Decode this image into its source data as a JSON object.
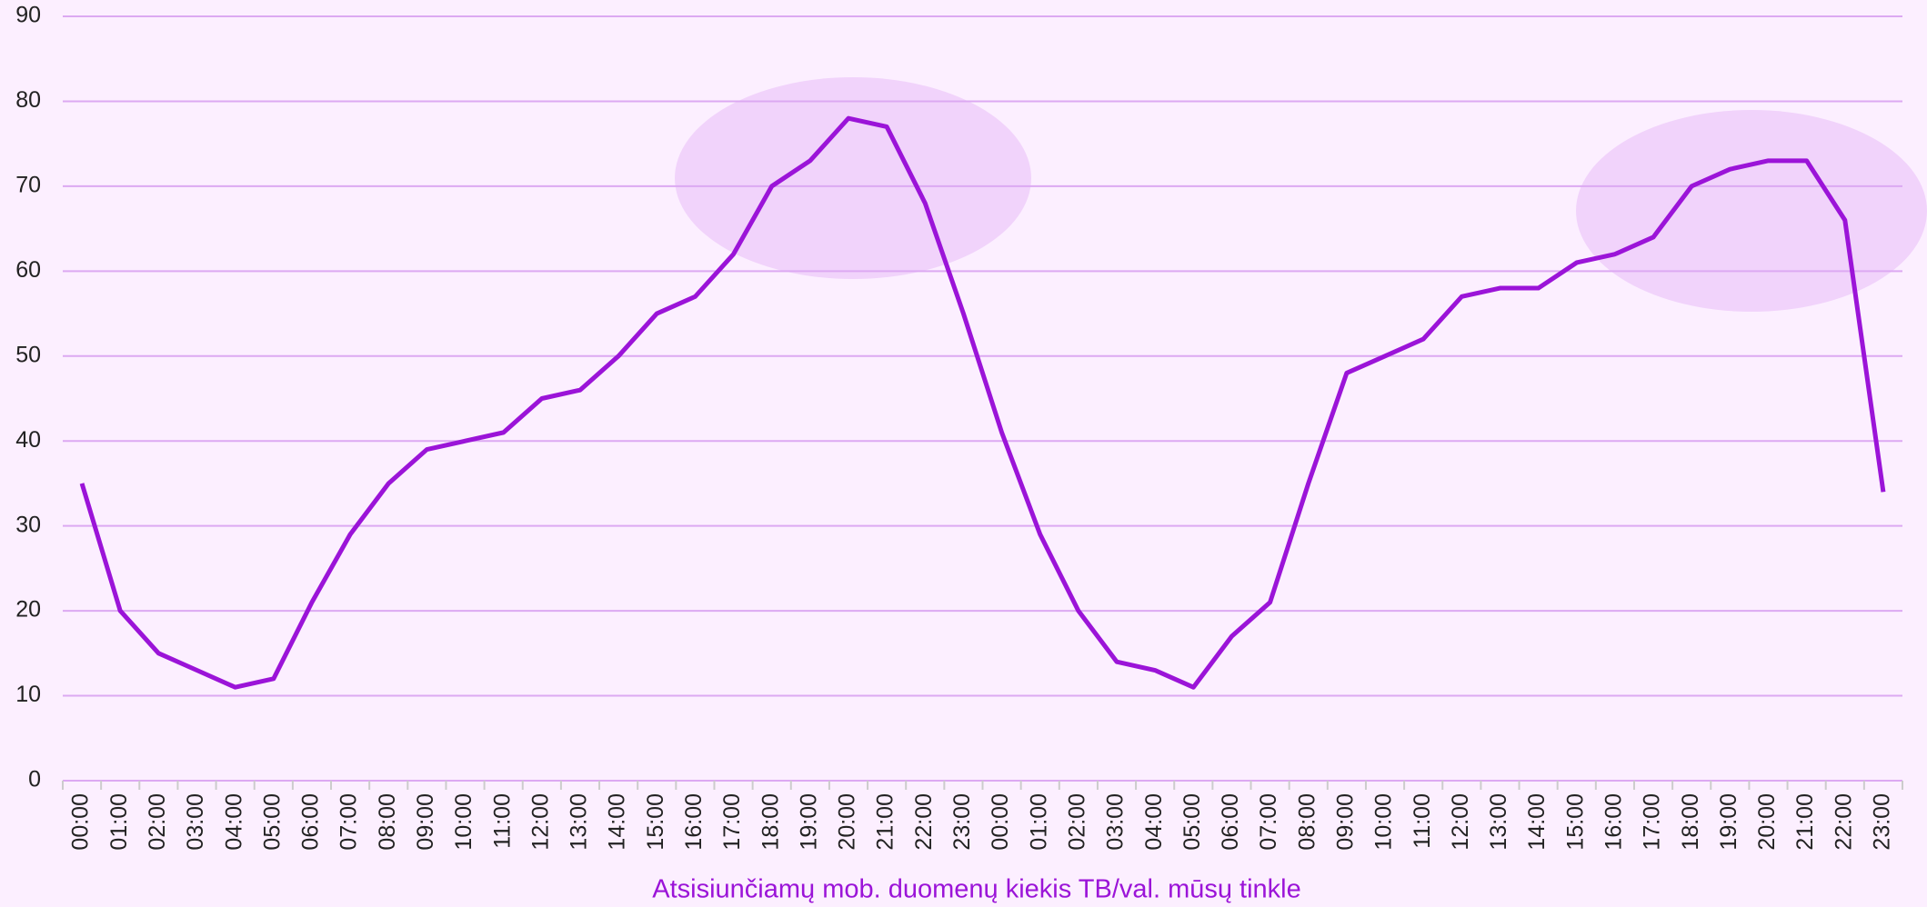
{
  "chart_data": {
    "type": "line",
    "x_label": "Atsisiunčiamų mob. duomenų kiekis TB/val. mūsų tinkle",
    "categories": [
      "00:00",
      "01:00",
      "02:00",
      "03:00",
      "04:00",
      "05:00",
      "06:00",
      "07:00",
      "08:00",
      "09:00",
      "10:00",
      "11:00",
      "12:00",
      "13:00",
      "14:00",
      "15:00",
      "16:00",
      "17:00",
      "18:00",
      "19:00",
      "20:00",
      "21:00",
      "22:00",
      "23:00",
      "00:00",
      "01:00",
      "02:00",
      "03:00",
      "04:00",
      "05:00",
      "06:00",
      "07:00",
      "08:00",
      "09:00",
      "10:00",
      "11:00",
      "12:00",
      "13:00",
      "14:00",
      "15:00",
      "16:00",
      "17:00",
      "18:00",
      "19:00",
      "20:00",
      "21:00",
      "22:00",
      "23:00"
    ],
    "values": [
      35,
      20,
      15,
      13,
      11,
      12,
      21,
      29,
      35,
      39,
      40,
      41,
      45,
      46,
      50,
      55,
      57,
      62,
      70,
      73,
      78,
      77,
      68,
      55,
      41,
      29,
      20,
      14,
      13,
      11,
      17,
      21,
      35,
      48,
      50,
      52,
      57,
      58,
      58,
      61,
      62,
      64,
      70,
      72,
      73,
      73,
      66,
      34
    ],
    "color": "#9b14d8",
    "ylim": [
      0,
      90
    ],
    "yticks": [
      0,
      10,
      20,
      30,
      40,
      50,
      60,
      70,
      80,
      90
    ],
    "grid": true
  }
}
